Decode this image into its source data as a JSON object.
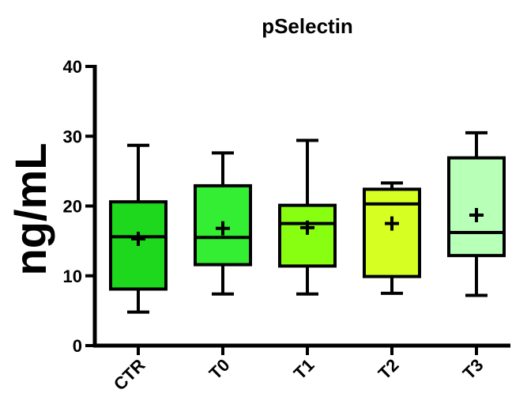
{
  "chart_data": {
    "type": "box",
    "title": "pSelectin",
    "ylabel": "ng/mL",
    "xlabel": "",
    "ylim": [
      0,
      40
    ],
    "yticks": [
      0,
      10,
      20,
      30,
      40
    ],
    "categories": [
      "CTR",
      "T0",
      "T1",
      "T2",
      "T3"
    ],
    "boxes": [
      {
        "category": "CTR",
        "min": 4.8,
        "q1": 8.1,
        "median": 15.6,
        "q3": 20.6,
        "max": 28.7,
        "mean": 15.3,
        "color": "#1ed81e"
      },
      {
        "category": "T0",
        "min": 7.4,
        "q1": 11.6,
        "median": 15.5,
        "q3": 22.9,
        "max": 27.6,
        "mean": 16.8,
        "color": "#33ee33"
      },
      {
        "category": "T1",
        "min": 7.4,
        "q1": 11.4,
        "median": 17.5,
        "q3": 20.1,
        "max": 29.4,
        "mean": 16.9,
        "color": "#88ff11"
      },
      {
        "category": "T2",
        "min": 7.5,
        "q1": 9.9,
        "median": 20.3,
        "q3": 22.4,
        "max": 23.3,
        "mean": 17.5,
        "color": "#d6ff22"
      },
      {
        "category": "T3",
        "min": 7.2,
        "q1": 12.9,
        "median": 16.2,
        "q3": 26.9,
        "max": 30.5,
        "mean": 18.7,
        "color": "#b8ffb8"
      }
    ],
    "grid": false,
    "legend": "none"
  }
}
